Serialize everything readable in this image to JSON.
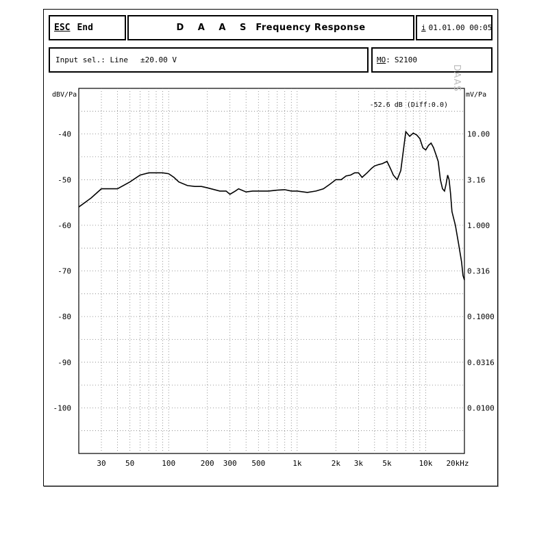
{
  "header": {
    "esc_label": "ESC",
    "end_label": "End",
    "brand": "D A A S",
    "title": "Frequency Response",
    "info_icon": "i",
    "datetime": "01.01.00 00:05"
  },
  "status": {
    "input_label": "Input sel.: Line",
    "range": "±20.00 V",
    "model_label": "MO",
    "model_value": "S2100"
  },
  "chart_data": {
    "type": "line",
    "title": "",
    "xlabel": "",
    "ylabel": "dBV/Pa",
    "y2label": "mV/Pa",
    "xscale": "log",
    "xlim": [
      20,
      20000
    ],
    "ylim": [
      -110,
      -30
    ],
    "grid": true,
    "annotation": "-52.6 dB (Diff:0.0)",
    "watermark": "DAAS",
    "x_ticks": [
      {
        "value": 30,
        "label": "30"
      },
      {
        "value": 50,
        "label": "50"
      },
      {
        "value": 100,
        "label": "100"
      },
      {
        "value": 200,
        "label": "200"
      },
      {
        "value": 300,
        "label": "300"
      },
      {
        "value": 500,
        "label": "500"
      },
      {
        "value": 1000,
        "label": "1k"
      },
      {
        "value": 2000,
        "label": "2k"
      },
      {
        "value": 3000,
        "label": "3k"
      },
      {
        "value": 5000,
        "label": "5k"
      },
      {
        "value": 10000,
        "label": "10k"
      },
      {
        "value": 20000,
        "label": "20kHz"
      }
    ],
    "y_ticks": [
      {
        "value": -40,
        "label": "-40",
        "right": "10.00"
      },
      {
        "value": -50,
        "label": "-50",
        "right": "3.16"
      },
      {
        "value": -60,
        "label": "-60",
        "right": "1.000"
      },
      {
        "value": -70,
        "label": "-70",
        "right": "0.316"
      },
      {
        "value": -80,
        "label": "-80",
        "right": "0.1000"
      },
      {
        "value": -90,
        "label": "-90",
        "right": "0.0316"
      },
      {
        "value": -100,
        "label": "-100",
        "right": "0.0100"
      }
    ],
    "series": [
      {
        "x": [
          20,
          25,
          30,
          35,
          40,
          50,
          60,
          70,
          80,
          90,
          100,
          110,
          120,
          140,
          160,
          180,
          200,
          250,
          280,
          300,
          330,
          350,
          400,
          450,
          500,
          600,
          700,
          800,
          900,
          1000,
          1200,
          1400,
          1600,
          1800,
          2000,
          2200,
          2400,
          2600,
          2800,
          3000,
          3200,
          3500,
          3800,
          4000,
          4300,
          4600,
          5000,
          5300,
          5600,
          6000,
          6400,
          7000,
          7500,
          8000,
          8500,
          9000,
          9500,
          10000,
          10500,
          11000,
          11500,
          12000,
          12500,
          13000,
          13500,
          14000,
          14400,
          14800,
          15200,
          15600,
          16000,
          16500,
          17000,
          17500,
          18000,
          18500,
          19000,
          19500,
          20000
        ],
        "y": [
          -56,
          -54,
          -52,
          -52,
          -52,
          -50.5,
          -49,
          -48.5,
          -48.5,
          -48.5,
          -48.7,
          -49.5,
          -50.5,
          -51.3,
          -51.5,
          -51.5,
          -51.8,
          -52.5,
          -52.5,
          -53.2,
          -52.5,
          -52,
          -52.7,
          -52.5,
          -52.5,
          -52.5,
          -52.3,
          -52.2,
          -52.5,
          -52.5,
          -52.8,
          -52.5,
          -52,
          -51,
          -50,
          -50,
          -49.2,
          -49,
          -48.5,
          -48.5,
          -49.5,
          -48.5,
          -47.5,
          -47,
          -46.7,
          -46.5,
          -46,
          -47.5,
          -49,
          -50,
          -48,
          -39.5,
          -40.5,
          -39.8,
          -40.2,
          -41,
          -43,
          -43.5,
          -42.5,
          -42,
          -43,
          -44.5,
          -46,
          -50,
          -52,
          -52.5,
          -51,
          -49,
          -50,
          -53,
          -57,
          -58.5,
          -60,
          -62,
          -64,
          -66,
          -68,
          -71,
          -72
        ]
      }
    ]
  }
}
